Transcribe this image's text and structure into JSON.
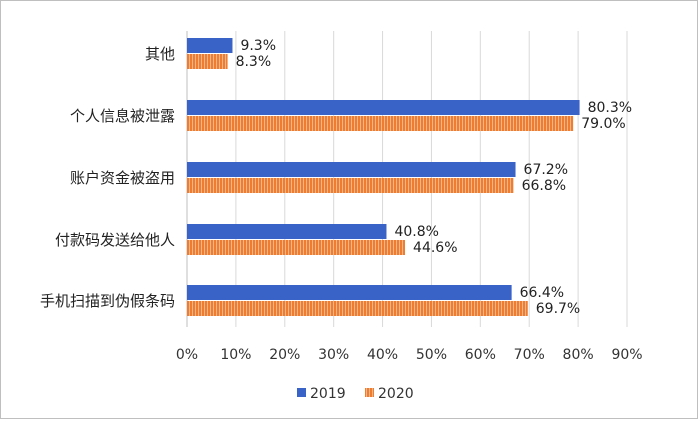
{
  "chart_data": {
    "type": "bar",
    "orientation": "horizontal",
    "categories": [
      "其他",
      "个人信息被泄露",
      "账户资金被盗用",
      "付款码发送给他人",
      "手机扫描到伪假条码"
    ],
    "series": [
      {
        "name": "2019",
        "values": [
          9.3,
          80.3,
          67.2,
          40.8,
          66.4
        ],
        "labels": [
          "9.3%",
          "80.3%",
          "67.2%",
          "40.8%",
          "66.4%"
        ],
        "color": "#3a63c8"
      },
      {
        "name": "2020",
        "values": [
          8.3,
          79.0,
          66.8,
          44.6,
          69.7
        ],
        "labels": [
          "8.3%",
          "79.0%",
          "66.8%",
          "44.6%",
          "69.7%"
        ],
        "color": "#ed7d31"
      }
    ],
    "xlim": [
      0,
      90
    ],
    "xticks": [
      "0%",
      "10%",
      "20%",
      "30%",
      "40%",
      "50%",
      "60%",
      "70%",
      "80%",
      "90%"
    ],
    "grid": true,
    "legend_position": "bottom"
  }
}
